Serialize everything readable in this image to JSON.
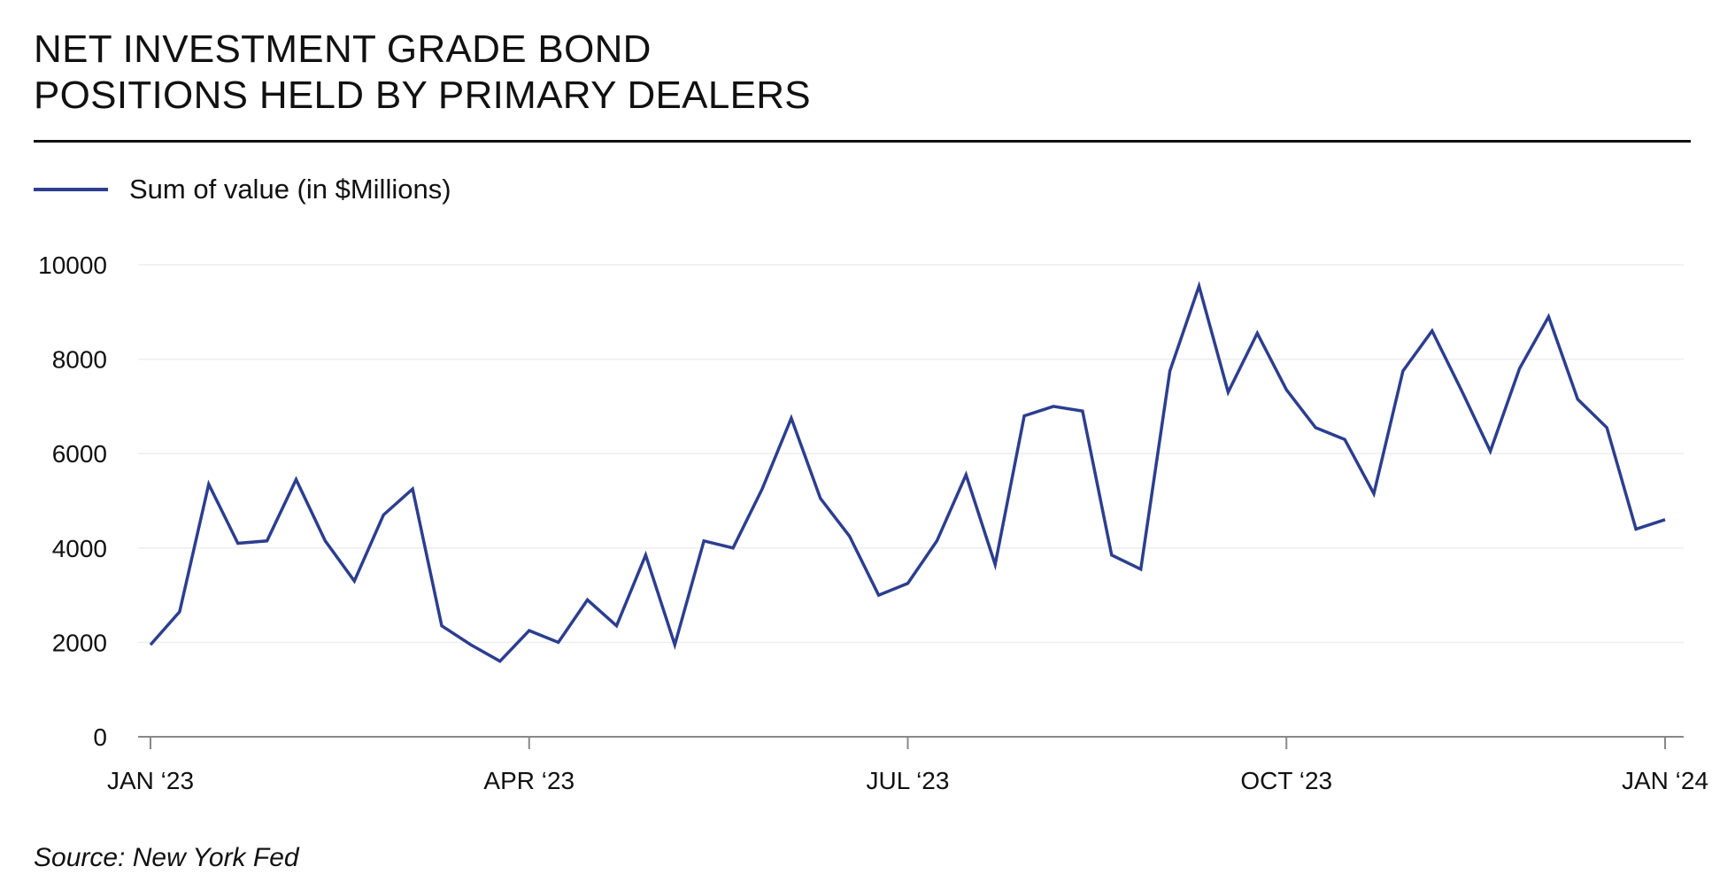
{
  "title_lines": [
    "NET INVESTMENT GRADE BOND",
    "POSITIONS HELD BY PRIMARY DEALERS"
  ],
  "source": "Source: New York Fed",
  "colors": {
    "series": "#2c3e8f",
    "axis": "#888888",
    "grid": "#eeeeee",
    "rule": "#111111"
  },
  "chart_data": {
    "type": "line",
    "title": "NET INVESTMENT GRADE BOND POSITIONS HELD BY PRIMARY DEALERS",
    "xlabel": "",
    "ylabel": "",
    "ylim": [
      0,
      10000
    ],
    "yticks": [
      0,
      2000,
      4000,
      6000,
      8000,
      10000
    ],
    "xlim": [
      "2023-01-04",
      "2024-01-03"
    ],
    "xticks": [
      {
        "date": "2023-01-04",
        "label": "JAN ‘23"
      },
      {
        "date": "2023-04-05",
        "label": "APR ‘23"
      },
      {
        "date": "2023-07-05",
        "label": "JUL ‘23"
      },
      {
        "date": "2023-10-04",
        "label": "OCT ‘23"
      },
      {
        "date": "2024-01-03",
        "label": "JAN ‘24"
      }
    ],
    "grid": true,
    "legend_position": "top-left",
    "series": [
      {
        "name": "Sum of value (in $Millions)",
        "x": [
          "2023-01-04",
          "2023-01-11",
          "2023-01-18",
          "2023-01-25",
          "2023-02-01",
          "2023-02-08",
          "2023-02-15",
          "2023-02-22",
          "2023-03-01",
          "2023-03-08",
          "2023-03-15",
          "2023-03-22",
          "2023-03-29",
          "2023-04-05",
          "2023-04-12",
          "2023-04-19",
          "2023-04-26",
          "2023-05-03",
          "2023-05-10",
          "2023-05-17",
          "2023-05-24",
          "2023-05-31",
          "2023-06-07",
          "2023-06-14",
          "2023-06-21",
          "2023-06-28",
          "2023-07-05",
          "2023-07-12",
          "2023-07-19",
          "2023-07-26",
          "2023-08-02",
          "2023-08-09",
          "2023-08-16",
          "2023-08-23",
          "2023-08-30",
          "2023-09-06",
          "2023-09-13",
          "2023-09-20",
          "2023-09-27",
          "2023-10-04",
          "2023-10-11",
          "2023-10-18",
          "2023-10-25",
          "2023-11-01",
          "2023-11-08",
          "2023-11-15",
          "2023-11-22",
          "2023-11-29",
          "2023-12-06",
          "2023-12-13",
          "2023-12-20",
          "2023-12-27",
          "2024-01-03"
        ],
        "values": [
          1950,
          2650,
          5350,
          4100,
          4150,
          5450,
          4150,
          3300,
          4700,
          5250,
          2350,
          1950,
          1600,
          2250,
          2000,
          2900,
          2350,
          3850,
          1950,
          4150,
          4000,
          5250,
          6750,
          5050,
          4250,
          3000,
          3250,
          4150,
          5550,
          3650,
          6800,
          7000,
          6900,
          3850,
          3550,
          7750,
          9550,
          7300,
          8550,
          7350,
          6550,
          6300,
          5150,
          7750,
          8600,
          7350,
          6050,
          7800,
          8900,
          7150,
          6550,
          4400,
          4600
        ]
      }
    ]
  }
}
